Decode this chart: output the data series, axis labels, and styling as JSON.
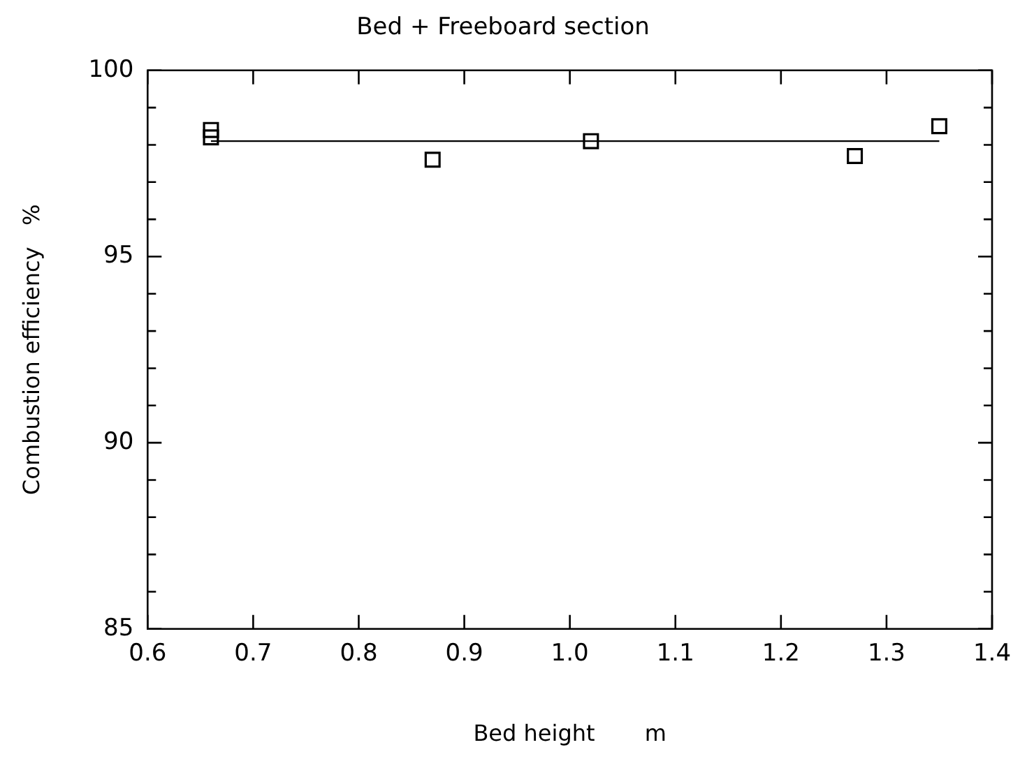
{
  "chart_data": {
    "type": "scatter",
    "title": "Bed + Freeboard section",
    "xlabel": "Bed height       m",
    "ylabel": "Combustion efficiency   %",
    "series": [
      {
        "color": "#000000",
        "marker": "square",
        "x": [
          0.66,
          0.66,
          0.87,
          1.02,
          1.27,
          1.35
        ],
        "values": [
          98.4,
          98.2,
          97.6,
          98.1,
          97.7,
          98.5
        ]
      },
      {
        "type": "line",
        "color": "#000000",
        "marker": "none",
        "x": [
          0.66,
          1.35
        ],
        "values": [
          98.1,
          98.1
        ]
      }
    ],
    "xlim": [
      0.6,
      1.4
    ],
    "xticks": [
      0.6,
      0.7,
      0.8,
      0.9,
      {
        "value": 1,
        "label": "1.0"
      },
      1.1,
      1.2,
      1.3,
      1.4
    ],
    "ylim": [
      85,
      100
    ],
    "yticks": [
      85,
      {
        "value": 86,
        "label": null
      },
      {
        "value": 87,
        "label": null
      },
      {
        "value": 88,
        "label": null
      },
      {
        "value": 89,
        "label": null
      },
      90,
      {
        "value": 91,
        "label": null
      },
      {
        "value": 92,
        "label": null
      },
      {
        "value": 93,
        "label": null
      },
      {
        "value": 94,
        "label": null
      },
      95,
      {
        "value": 96,
        "label": null
      },
      {
        "value": 97,
        "label": null
      },
      {
        "value": 98,
        "label": null
      },
      {
        "value": 99,
        "label": null
      },
      100
    ],
    "grid": false,
    "legend": false
  }
}
